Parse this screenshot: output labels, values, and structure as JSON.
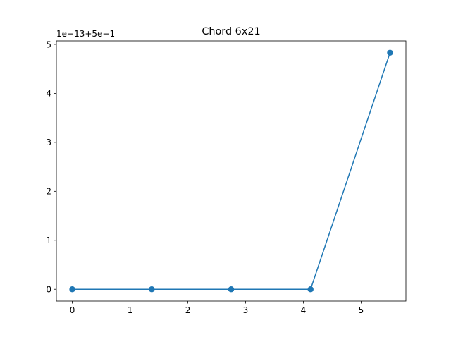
{
  "chart_data": {
    "type": "line",
    "title": "Chord 6x21",
    "xlabel": "",
    "ylabel": "",
    "offset_label": "1e−13+5e−1",
    "x": [
      0,
      1.375,
      2.75,
      4.125,
      5.5
    ],
    "series": [
      {
        "values": [
          0,
          0,
          0,
          0,
          4.83
        ],
        "color": "#1f77b4",
        "marker": "circle"
      }
    ],
    "xlim": [
      -0.275,
      5.775
    ],
    "ylim": [
      -0.2415,
      5.0715
    ],
    "x_ticks": [
      0,
      1,
      2,
      3,
      4,
      5
    ],
    "x_tick_labels": [
      "0",
      "1",
      "2",
      "3",
      "4",
      "5"
    ],
    "y_ticks": [
      0,
      1,
      2,
      3,
      4,
      5
    ],
    "y_tick_labels": [
      "0",
      "1",
      "2",
      "3",
      "4",
      "5"
    ],
    "grid": false,
    "legend": "none"
  }
}
